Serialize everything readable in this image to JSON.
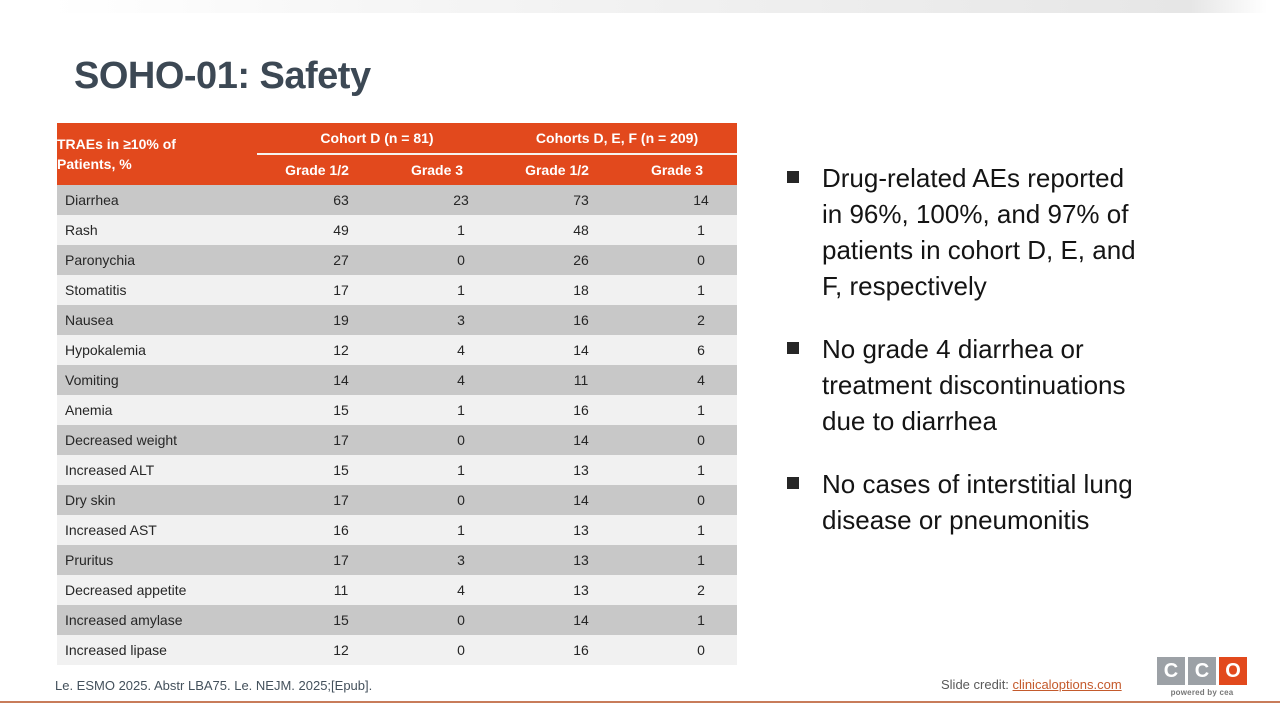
{
  "slide": {
    "title": "SOHO-01: Safety",
    "citation": "Le. ESMO 2025. Abstr LBA75. Le. NEJM. 2025;[Epub].",
    "credit": {
      "label": "Slide credit: ",
      "link": "clinicaloptions.com"
    },
    "logo": {
      "letters": [
        "C",
        "C",
        "O"
      ],
      "tagline": "powered by cea"
    }
  },
  "table": {
    "row_header": "TRAEs in ≥10% of\nPatients, %",
    "col_groups": [
      {
        "label": "Cohort D (n = 81)"
      },
      {
        "label": "Cohorts D, E, F (n = 209)"
      }
    ],
    "sub_headers": [
      "Grade 1/2",
      "Grade 3",
      "Grade 1/2",
      "Grade 3"
    ],
    "rows": [
      {
        "label": "Diarrhea",
        "values": [
          63,
          23,
          73,
          14
        ]
      },
      {
        "label": "Rash",
        "values": [
          49,
          1,
          48,
          1
        ]
      },
      {
        "label": "Paronychia",
        "values": [
          27,
          0,
          26,
          0
        ]
      },
      {
        "label": "Stomatitis",
        "values": [
          17,
          1,
          18,
          1
        ]
      },
      {
        "label": "Nausea",
        "values": [
          19,
          3,
          16,
          2
        ]
      },
      {
        "label": "Hypokalemia",
        "values": [
          12,
          4,
          14,
          6
        ]
      },
      {
        "label": "Vomiting",
        "values": [
          14,
          4,
          11,
          4
        ]
      },
      {
        "label": "Anemia",
        "values": [
          15,
          1,
          16,
          1
        ]
      },
      {
        "label": "Decreased weight",
        "values": [
          17,
          0,
          14,
          0
        ]
      },
      {
        "label": "Increased ALT",
        "values": [
          15,
          1,
          13,
          1
        ]
      },
      {
        "label": "Dry skin",
        "values": [
          17,
          0,
          14,
          0
        ]
      },
      {
        "label": "Increased AST",
        "values": [
          16,
          1,
          13,
          1
        ]
      },
      {
        "label": "Pruritus",
        "values": [
          17,
          3,
          13,
          1
        ]
      },
      {
        "label": "Decreased appetite",
        "values": [
          11,
          4,
          13,
          2
        ]
      },
      {
        "label": "Increased amylase",
        "values": [
          15,
          0,
          14,
          1
        ]
      },
      {
        "label": "Increased lipase",
        "values": [
          12,
          0,
          16,
          0
        ]
      }
    ]
  },
  "bullets": [
    {
      "text": "Drug-related AEs reported\nin 96%, 100%, and 97% of\npatients in cohort D, E, and\nF, respectively"
    },
    {
      "text": "No grade 4 diarrhea or\ntreatment discontinuations\ndue to diarrhea"
    },
    {
      "text": "No cases of interstitial lung\ndisease or pneumonitis"
    }
  ],
  "colors": {
    "accent": "#E2491D",
    "title": "#3C4854",
    "row-dark": "#C8C8C8",
    "row-light": "#F1F1F1",
    "link": "#C45A2C",
    "logo-gray": "#9CA1A6",
    "rule": "#C87C5A"
  }
}
